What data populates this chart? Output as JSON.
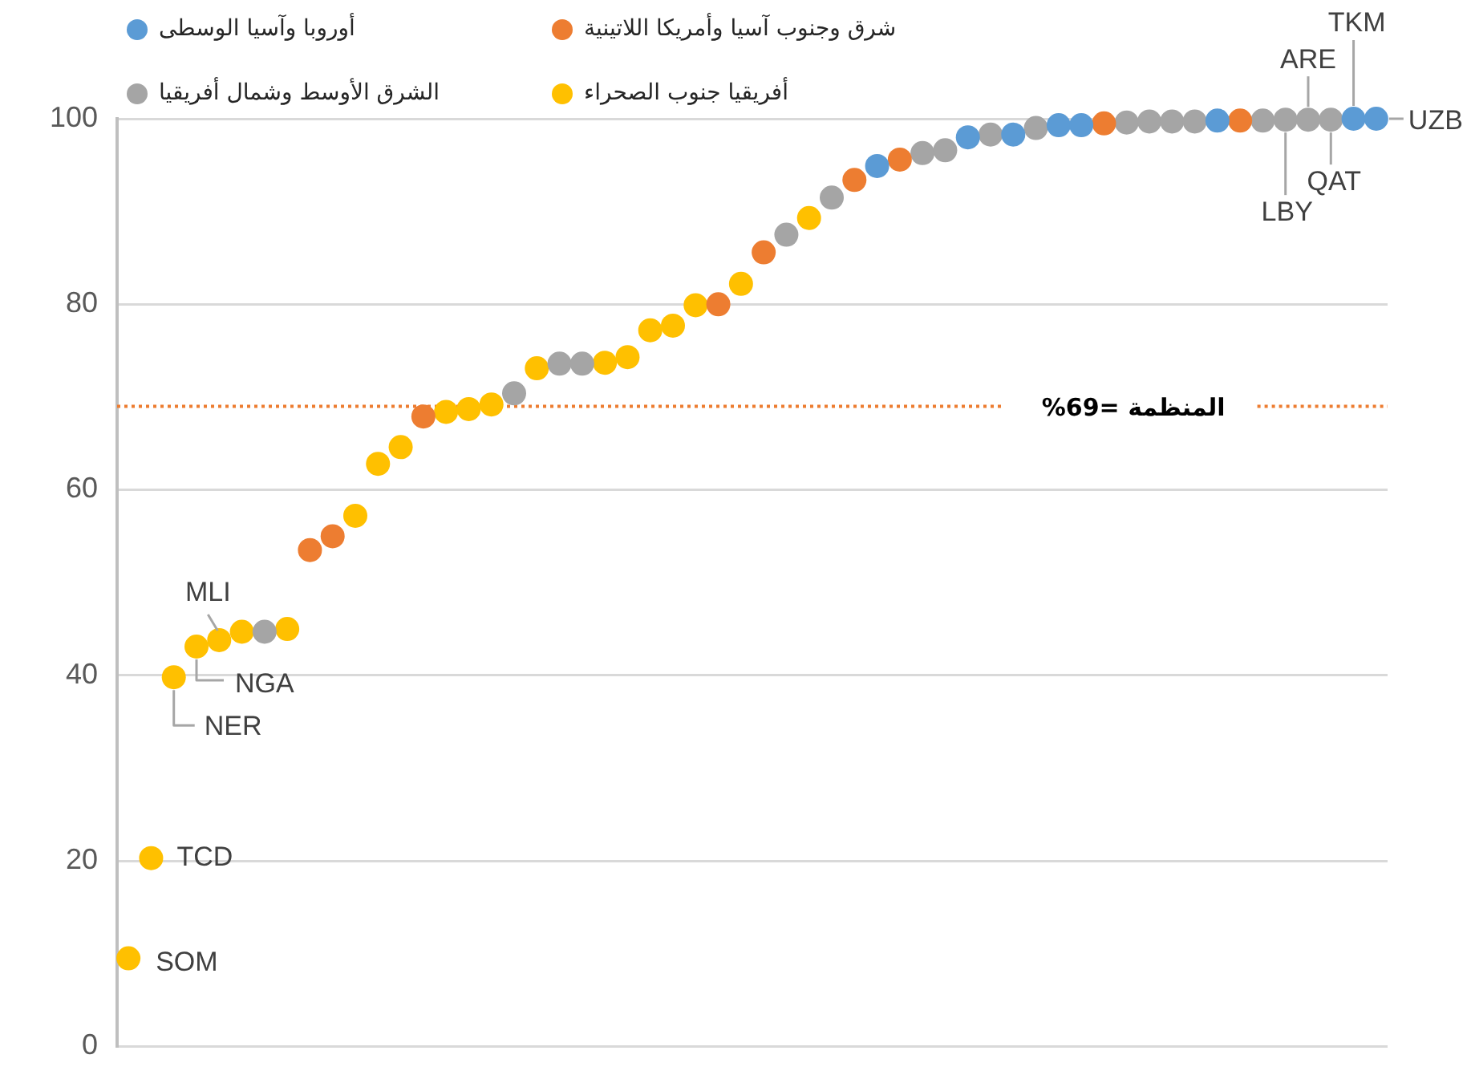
{
  "chart_data": {
    "type": "scatter",
    "categories": [
      null,
      null,
      null,
      null,
      null,
      null,
      null,
      null,
      null,
      null,
      null,
      null,
      null,
      null,
      null,
      null,
      null,
      null,
      null,
      null,
      null,
      null,
      null,
      null,
      null,
      null,
      null,
      null,
      null,
      null,
      null,
      null,
      null,
      null,
      null,
      null,
      null,
      null,
      null,
      null,
      null,
      null,
      null,
      null,
      null,
      null,
      null,
      null,
      null,
      null,
      null,
      null,
      null,
      null,
      null,
      null
    ],
    "series": [
      {
        "name": "أوروبا وآسيا الوسطى",
        "color": "#5b9bd5",
        "values": [
          null,
          null,
          null,
          null,
          null,
          null,
          null,
          null,
          null,
          null,
          null,
          null,
          null,
          null,
          null,
          null,
          null,
          null,
          null,
          null,
          null,
          null,
          null,
          null,
          null,
          null,
          null,
          null,
          null,
          null,
          null,
          null,
          null,
          94.9,
          null,
          null,
          null,
          98,
          null,
          98.3,
          null,
          99.3,
          99.3,
          null,
          null,
          null,
          null,
          null,
          99.8,
          null,
          null,
          null,
          null,
          null,
          100,
          100
        ],
        "value_labels": [
          null,
          null,
          null,
          null,
          null,
          null,
          null,
          null,
          null,
          null,
          null,
          null,
          null,
          null,
          null,
          null,
          null,
          null,
          null,
          null,
          null,
          null,
          null,
          null,
          null,
          null,
          null,
          null,
          null,
          null,
          null,
          null,
          null,
          null,
          null,
          null,
          null,
          null,
          null,
          null,
          null,
          null,
          null,
          null,
          null,
          null,
          null,
          null,
          null,
          null,
          null,
          null,
          null,
          null,
          "TKM",
          "UZB"
        ]
      },
      {
        "name": "شرق وجنوب آسيا وأمريكا اللاتينية",
        "color": "#ed7d31",
        "values": [
          null,
          null,
          null,
          null,
          null,
          null,
          null,
          null,
          53.5,
          55,
          null,
          null,
          null,
          67.9,
          null,
          null,
          null,
          null,
          null,
          null,
          null,
          null,
          null,
          null,
          null,
          null,
          80,
          null,
          85.6,
          null,
          null,
          null,
          93.4,
          null,
          95.6,
          null,
          null,
          null,
          null,
          null,
          null,
          null,
          null,
          99.5,
          null,
          null,
          null,
          null,
          null,
          99.8,
          null,
          null,
          null,
          null,
          null,
          null
        ]
      },
      {
        "name": "الشرق الأوسط وشمال أفريقيا",
        "color": "#a5a5a5",
        "values": [
          null,
          null,
          null,
          null,
          null,
          null,
          44.7,
          null,
          null,
          null,
          null,
          null,
          null,
          null,
          null,
          null,
          null,
          70.4,
          null,
          73.6,
          73.6,
          null,
          null,
          null,
          null,
          null,
          null,
          null,
          null,
          87.5,
          null,
          91.5,
          null,
          null,
          null,
          96.3,
          96.6,
          null,
          98.3,
          null,
          99,
          null,
          null,
          null,
          99.6,
          99.7,
          99.7,
          99.7,
          null,
          null,
          99.8,
          99.9,
          99.9,
          99.9,
          null,
          null
        ],
        "value_labels": [
          null,
          null,
          null,
          null,
          null,
          null,
          null,
          null,
          null,
          null,
          null,
          null,
          null,
          null,
          null,
          null,
          null,
          null,
          null,
          null,
          null,
          null,
          null,
          null,
          null,
          null,
          null,
          null,
          null,
          null,
          null,
          null,
          null,
          null,
          null,
          null,
          null,
          null,
          null,
          null,
          null,
          null,
          null,
          null,
          null,
          null,
          null,
          null,
          null,
          null,
          null,
          "LBY",
          "ARE",
          "QAT",
          null,
          null
        ]
      },
      {
        "name": "أفريقيا جنوب الصحراء",
        "color": "#ffc000",
        "values": [
          9.5,
          20.3,
          39.8,
          43.1,
          43.8,
          44.7,
          null,
          45,
          null,
          null,
          57.2,
          62.8,
          64.6,
          null,
          68.4,
          68.7,
          69.2,
          null,
          73.1,
          null,
          null,
          73.7,
          74.3,
          77.2,
          77.7,
          79.9,
          null,
          82.2,
          null,
          null,
          89.3,
          null,
          null,
          null,
          null,
          null,
          null,
          null,
          null,
          null,
          null,
          null,
          null,
          null,
          null,
          null,
          null,
          null,
          null,
          null,
          null,
          null,
          null,
          null,
          null,
          null
        ],
        "value_labels": [
          "SOM",
          "TCD",
          "NER",
          "NGA",
          "MLI",
          null,
          null,
          null,
          null,
          null,
          null,
          null,
          null,
          null,
          null,
          null,
          null,
          null,
          null,
          null,
          null,
          null,
          null,
          null,
          null,
          null,
          null,
          null,
          null,
          null,
          null,
          null,
          null,
          null,
          null,
          null,
          null,
          null,
          null,
          null,
          null,
          null,
          null,
          null,
          null,
          null,
          null,
          null,
          null,
          null,
          null,
          null,
          null,
          null,
          null,
          null
        ]
      }
    ],
    "ylim": [
      0,
      100
    ],
    "yticks": [
      0,
      20,
      40,
      60,
      80,
      100
    ],
    "ref_lines": [
      {
        "axis": "y",
        "value": 69,
        "label": "المنظمة =69%",
        "color": "#ed7d31",
        "line_style": "dotted"
      }
    ],
    "grid": "y",
    "legend": "top left",
    "marker": "circle"
  }
}
